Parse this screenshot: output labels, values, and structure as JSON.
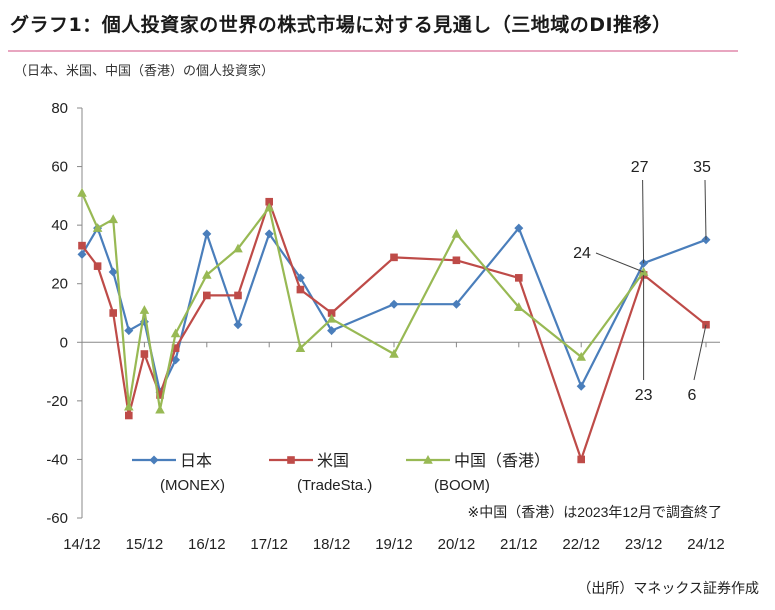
{
  "title": "グラフ1：個人投資家の世界の株式市場に対する見通し（三地域のDI推移）",
  "subtitle": "（日本、米国、中国（香港）の個人投資家）",
  "source": "（出所）マネックス証券作成",
  "note": "※中国（香港）は2023年12月で調査終了",
  "colors": {
    "japan": "#4a7ebb",
    "us": "#be4b48",
    "china": "#98b954",
    "title_rule": "#e8a6c0"
  },
  "chart_data": {
    "type": "line",
    "ylim": [
      -60,
      80
    ],
    "yticks": [
      -60,
      -40,
      -20,
      0,
      20,
      40,
      60,
      80
    ],
    "xlim": [
      0,
      10
    ],
    "xticks": [
      {
        "label": "14/12",
        "x": 0
      },
      {
        "label": "15/12",
        "x": 1
      },
      {
        "label": "16/12",
        "x": 2
      },
      {
        "label": "17/12",
        "x": 3
      },
      {
        "label": "18/12",
        "x": 4
      },
      {
        "label": "19/12",
        "x": 5
      },
      {
        "label": "20/12",
        "x": 6
      },
      {
        "label": "21/12",
        "x": 7
      },
      {
        "label": "22/12",
        "x": 8
      },
      {
        "label": "23/12",
        "x": 9
      },
      {
        "label": "24/12",
        "x": 10
      }
    ],
    "series": [
      {
        "name": "日本",
        "sub": "(MONEX)",
        "color": "#4a7ebb",
        "marker": "diamond",
        "points": [
          [
            0,
            30
          ],
          [
            0.25,
            39
          ],
          [
            0.5,
            24
          ],
          [
            0.75,
            4
          ],
          [
            1,
            7
          ],
          [
            1.25,
            -17
          ],
          [
            1.5,
            -6
          ],
          [
            2,
            37
          ],
          [
            2.5,
            6
          ],
          [
            3,
            37
          ],
          [
            3.5,
            22
          ],
          [
            4,
            4
          ],
          [
            5,
            13
          ],
          [
            6,
            13
          ],
          [
            7,
            39
          ],
          [
            8,
            -15
          ],
          [
            9,
            27
          ],
          [
            10,
            35
          ]
        ]
      },
      {
        "name": "米国",
        "sub": "(TradeSta.)",
        "color": "#be4b48",
        "marker": "square",
        "points": [
          [
            0,
            33
          ],
          [
            0.25,
            26
          ],
          [
            0.5,
            10
          ],
          [
            0.75,
            -25
          ],
          [
            1,
            -4
          ],
          [
            1.25,
            -18
          ],
          [
            1.5,
            -2
          ],
          [
            2,
            16
          ],
          [
            2.5,
            16
          ],
          [
            3,
            48
          ],
          [
            3.5,
            18
          ],
          [
            4,
            10
          ],
          [
            5,
            29
          ],
          [
            6,
            28
          ],
          [
            7,
            22
          ],
          [
            8,
            -40
          ],
          [
            9,
            23
          ],
          [
            10,
            6
          ]
        ]
      },
      {
        "name": "中国（香港）",
        "sub": "(BOOM)",
        "color": "#98b954",
        "marker": "triangle",
        "points": [
          [
            0,
            51
          ],
          [
            0.25,
            39
          ],
          [
            0.5,
            42
          ],
          [
            0.75,
            -22
          ],
          [
            1,
            11
          ],
          [
            1.25,
            -23
          ],
          [
            1.5,
            3
          ],
          [
            2,
            23
          ],
          [
            2.5,
            32
          ],
          [
            3,
            46
          ],
          [
            3.5,
            -2
          ],
          [
            4,
            8
          ],
          [
            5,
            -4
          ],
          [
            6,
            37
          ],
          [
            7,
            12
          ],
          [
            8,
            -5
          ],
          [
            9,
            24
          ]
        ]
      }
    ],
    "annotations": [
      {
        "text": "27",
        "x": 9,
        "y": 27,
        "dir": "up"
      },
      {
        "text": "35",
        "x": 10,
        "y": 35,
        "dir": "up"
      },
      {
        "text": "24",
        "x": 9,
        "y": 24,
        "dir": "left"
      },
      {
        "text": "23",
        "x": 9,
        "y": 23,
        "dir": "down"
      },
      {
        "text": "6",
        "x": 10,
        "y": 6,
        "dir": "down"
      }
    ]
  }
}
